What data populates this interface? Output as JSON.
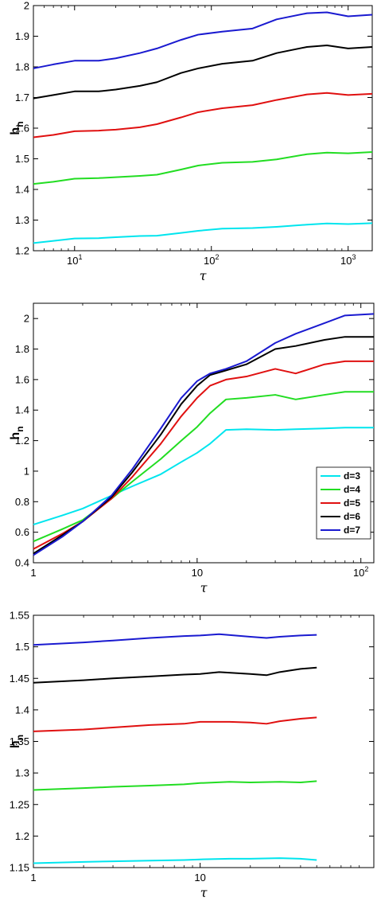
{
  "chart_data": [
    {
      "type": "line",
      "xscale": "log",
      "xlim": [
        5,
        1500
      ],
      "ylim": [
        1.2,
        2.0
      ],
      "xticks": [
        {
          "v": 10,
          "b": "10",
          "e": "1"
        },
        {
          "v": 100,
          "b": "10",
          "e": "2"
        },
        {
          "v": 1000,
          "b": "10",
          "e": "3"
        }
      ],
      "yticks": [
        "1.2",
        "1.3",
        "1.4",
        "1.5",
        "1.6",
        "1.7",
        "1.8",
        "1.9",
        "2"
      ],
      "ylabel": {
        "main": "h",
        "sub": "n"
      },
      "xlabel": "τ",
      "series": [
        {
          "color": "#00e5ee",
          "points": [
            [
              5,
              1.225
            ],
            [
              7,
              1.232
            ],
            [
              10,
              1.24
            ],
            [
              15,
              1.241
            ],
            [
              20,
              1.244
            ],
            [
              30,
              1.248
            ],
            [
              40,
              1.249
            ],
            [
              60,
              1.258
            ],
            [
              80,
              1.265
            ],
            [
              120,
              1.272
            ],
            [
              200,
              1.274
            ],
            [
              300,
              1.278
            ],
            [
              500,
              1.285
            ],
            [
              700,
              1.289
            ],
            [
              1000,
              1.287
            ],
            [
              1500,
              1.29
            ]
          ]
        },
        {
          "color": "#22dd22",
          "points": [
            [
              5,
              1.418
            ],
            [
              7,
              1.425
            ],
            [
              10,
              1.435
            ],
            [
              15,
              1.437
            ],
            [
              20,
              1.44
            ],
            [
              30,
              1.444
            ],
            [
              40,
              1.448
            ],
            [
              60,
              1.465
            ],
            [
              80,
              1.478
            ],
            [
              120,
              1.487
            ],
            [
              200,
              1.49
            ],
            [
              300,
              1.498
            ],
            [
              500,
              1.515
            ],
            [
              700,
              1.52
            ],
            [
              1000,
              1.518
            ],
            [
              1500,
              1.522
            ]
          ]
        },
        {
          "color": "#e01010",
          "points": [
            [
              5,
              1.57
            ],
            [
              7,
              1.578
            ],
            [
              10,
              1.59
            ],
            [
              15,
              1.592
            ],
            [
              20,
              1.595
            ],
            [
              30,
              1.603
            ],
            [
              40,
              1.613
            ],
            [
              60,
              1.635
            ],
            [
              80,
              1.652
            ],
            [
              120,
              1.665
            ],
            [
              200,
              1.675
            ],
            [
              300,
              1.692
            ],
            [
              500,
              1.71
            ],
            [
              700,
              1.715
            ],
            [
              1000,
              1.708
            ],
            [
              1500,
              1.712
            ]
          ]
        },
        {
          "color": "#000000",
          "points": [
            [
              5,
              1.697
            ],
            [
              7,
              1.708
            ],
            [
              10,
              1.72
            ],
            [
              15,
              1.72
            ],
            [
              20,
              1.726
            ],
            [
              30,
              1.738
            ],
            [
              40,
              1.75
            ],
            [
              60,
              1.78
            ],
            [
              80,
              1.795
            ],
            [
              120,
              1.81
            ],
            [
              200,
              1.82
            ],
            [
              300,
              1.845
            ],
            [
              500,
              1.865
            ],
            [
              700,
              1.87
            ],
            [
              1000,
              1.86
            ],
            [
              1500,
              1.865
            ]
          ]
        },
        {
          "color": "#1a1ad0",
          "points": [
            [
              5,
              1.795
            ],
            [
              7,
              1.808
            ],
            [
              10,
              1.82
            ],
            [
              15,
              1.82
            ],
            [
              20,
              1.828
            ],
            [
              30,
              1.845
            ],
            [
              40,
              1.86
            ],
            [
              60,
              1.888
            ],
            [
              80,
              1.905
            ],
            [
              120,
              1.915
            ],
            [
              200,
              1.925
            ],
            [
              300,
              1.955
            ],
            [
              500,
              1.975
            ],
            [
              700,
              1.978
            ],
            [
              1000,
              1.965
            ],
            [
              1500,
              1.97
            ]
          ]
        }
      ]
    },
    {
      "type": "line",
      "xscale": "log",
      "xlim": [
        1,
        120
      ],
      "ylim": [
        0.4,
        2.1
      ],
      "xticks": [
        {
          "v": 1,
          "b": "1",
          "e": ""
        },
        {
          "v": 10,
          "b": "10",
          "e": ""
        },
        {
          "v": 100,
          "b": "10",
          "e": "2"
        }
      ],
      "yticks": [
        "0.4",
        "0.6",
        "0.8",
        "1",
        "1.2",
        "1.4",
        "1.6",
        "1.8",
        "2"
      ],
      "ylabel": {
        "main": "h",
        "sub": "n"
      },
      "xlabel": "τ",
      "legend": {
        "position": "right-middle",
        "entries": [
          "d=3",
          "d=4",
          "d=5",
          "d=6",
          "d=7"
        ]
      },
      "series": [
        {
          "name": "d=3",
          "color": "#00e5ee",
          "points": [
            [
              1,
              0.65
            ],
            [
              1.5,
              0.71
            ],
            [
              2,
              0.755
            ],
            [
              3,
              0.84
            ],
            [
              4,
              0.9
            ],
            [
              6,
              0.98
            ],
            [
              8,
              1.06
            ],
            [
              10,
              1.12
            ],
            [
              12,
              1.18
            ],
            [
              15,
              1.27
            ],
            [
              20,
              1.275
            ],
            [
              30,
              1.27
            ],
            [
              40,
              1.275
            ],
            [
              60,
              1.28
            ],
            [
              80,
              1.285
            ],
            [
              120,
              1.285
            ]
          ]
        },
        {
          "name": "d=4",
          "color": "#22dd22",
          "points": [
            [
              1,
              0.54
            ],
            [
              1.5,
              0.62
            ],
            [
              2,
              0.68
            ],
            [
              3,
              0.82
            ],
            [
              4,
              0.93
            ],
            [
              6,
              1.08
            ],
            [
              8,
              1.2
            ],
            [
              10,
              1.29
            ],
            [
              12,
              1.38
            ],
            [
              15,
              1.47
            ],
            [
              20,
              1.48
            ],
            [
              30,
              1.5
            ],
            [
              40,
              1.47
            ],
            [
              60,
              1.5
            ],
            [
              80,
              1.52
            ],
            [
              120,
              1.52
            ]
          ]
        },
        {
          "name": "d=5",
          "color": "#e01010",
          "points": [
            [
              1,
              0.49
            ],
            [
              1.5,
              0.59
            ],
            [
              2,
              0.67
            ],
            [
              3,
              0.82
            ],
            [
              4,
              0.96
            ],
            [
              6,
              1.18
            ],
            [
              8,
              1.36
            ],
            [
              10,
              1.48
            ],
            [
              12,
              1.56
            ],
            [
              15,
              1.6
            ],
            [
              20,
              1.62
            ],
            [
              30,
              1.67
            ],
            [
              40,
              1.64
            ],
            [
              60,
              1.7
            ],
            [
              80,
              1.72
            ],
            [
              120,
              1.72
            ]
          ]
        },
        {
          "name": "d=6",
          "color": "#000000",
          "points": [
            [
              1,
              0.46
            ],
            [
              1.5,
              0.58
            ],
            [
              2,
              0.67
            ],
            [
              3,
              0.83
            ],
            [
              4,
              0.99
            ],
            [
              6,
              1.24
            ],
            [
              8,
              1.44
            ],
            [
              10,
              1.56
            ],
            [
              12,
              1.63
            ],
            [
              15,
              1.66
            ],
            [
              20,
              1.7
            ],
            [
              30,
              1.8
            ],
            [
              40,
              1.82
            ],
            [
              60,
              1.86
            ],
            [
              80,
              1.88
            ],
            [
              120,
              1.88
            ]
          ]
        },
        {
          "name": "d=7",
          "color": "#1a1ad0",
          "points": [
            [
              1,
              0.45
            ],
            [
              1.5,
              0.57
            ],
            [
              2,
              0.67
            ],
            [
              3,
              0.84
            ],
            [
              4,
              1.01
            ],
            [
              6,
              1.28
            ],
            [
              8,
              1.48
            ],
            [
              10,
              1.59
            ],
            [
              12,
              1.64
            ],
            [
              15,
              1.67
            ],
            [
              20,
              1.72
            ],
            [
              30,
              1.84
            ],
            [
              40,
              1.9
            ],
            [
              60,
              1.97
            ],
            [
              80,
              2.02
            ],
            [
              120,
              2.03
            ]
          ]
        }
      ]
    },
    {
      "type": "line",
      "xscale": "log",
      "xlim": [
        1,
        110
      ],
      "ylim": [
        1.15,
        1.55
      ],
      "xticks": [
        {
          "v": 1,
          "b": "1",
          "e": ""
        },
        {
          "v": 10,
          "b": "10",
          "e": ""
        }
      ],
      "yticks": [
        "1.15",
        "1.2",
        "1.25",
        "1.3",
        "1.35",
        "1.4",
        "1.45",
        "1.5",
        "1.55"
      ],
      "ylabel": {
        "main": "h",
        "sub": "n"
      },
      "xlabel": "τ",
      "series": [
        {
          "color": "#00e5ee",
          "points": [
            [
              1,
              1.157
            ],
            [
              2,
              1.159
            ],
            [
              3,
              1.16
            ],
            [
              5,
              1.161
            ],
            [
              8,
              1.162
            ],
            [
              10,
              1.163
            ],
            [
              15,
              1.164
            ],
            [
              20,
              1.164
            ],
            [
              30,
              1.165
            ],
            [
              40,
              1.164
            ],
            [
              50,
              1.162
            ]
          ]
        },
        {
          "color": "#22dd22",
          "points": [
            [
              1,
              1.273
            ],
            [
              2,
              1.276
            ],
            [
              3,
              1.278
            ],
            [
              5,
              1.28
            ],
            [
              8,
              1.282
            ],
            [
              10,
              1.284
            ],
            [
              15,
              1.286
            ],
            [
              20,
              1.285
            ],
            [
              30,
              1.286
            ],
            [
              40,
              1.285
            ],
            [
              50,
              1.287
            ]
          ]
        },
        {
          "color": "#e01010",
          "points": [
            [
              1,
              1.366
            ],
            [
              2,
              1.369
            ],
            [
              3,
              1.372
            ],
            [
              5,
              1.376
            ],
            [
              8,
              1.378
            ],
            [
              10,
              1.381
            ],
            [
              15,
              1.381
            ],
            [
              20,
              1.38
            ],
            [
              25,
              1.378
            ],
            [
              30,
              1.382
            ],
            [
              40,
              1.386
            ],
            [
              50,
              1.388
            ]
          ]
        },
        {
          "color": "#000000",
          "points": [
            [
              1,
              1.443
            ],
            [
              2,
              1.447
            ],
            [
              3,
              1.45
            ],
            [
              5,
              1.453
            ],
            [
              8,
              1.456
            ],
            [
              10,
              1.457
            ],
            [
              13,
              1.46
            ],
            [
              20,
              1.457
            ],
            [
              25,
              1.455
            ],
            [
              30,
              1.46
            ],
            [
              40,
              1.465
            ],
            [
              50,
              1.467
            ]
          ]
        },
        {
          "color": "#1a1ad0",
          "points": [
            [
              1,
              1.503
            ],
            [
              2,
              1.507
            ],
            [
              3,
              1.51
            ],
            [
              5,
              1.514
            ],
            [
              8,
              1.517
            ],
            [
              10,
              1.518
            ],
            [
              13,
              1.52
            ],
            [
              20,
              1.516
            ],
            [
              25,
              1.514
            ],
            [
              30,
              1.516
            ],
            [
              40,
              1.518
            ],
            [
              50,
              1.519
            ]
          ]
        }
      ]
    }
  ]
}
